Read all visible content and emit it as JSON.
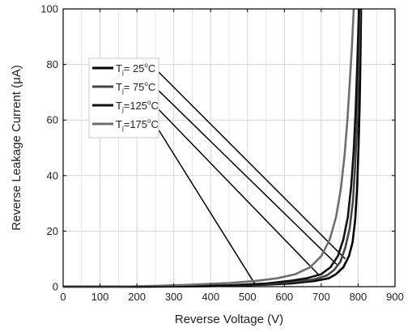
{
  "chart_data": {
    "type": "line",
    "xlabel": "Reverse Voltage (V)",
    "ylabel": "Reverse Leakage Current (μA)",
    "xlim": [
      0,
      900
    ],
    "ylim": [
      0,
      100
    ],
    "xticks": [
      0,
      100,
      200,
      300,
      400,
      500,
      600,
      700,
      800,
      900
    ],
    "yticks": [
      0,
      20,
      40,
      60,
      80,
      100
    ],
    "grid": true,
    "legend_position": "top-left",
    "series": [
      {
        "name": "Tj= 25°C",
        "label_parts": {
          "t": "T",
          "sub": "j",
          "eq": "=",
          "temp": " 25",
          "deg": "o",
          "unit": "C"
        },
        "color": "#000000",
        "pointer_target": [
          765,
          10
        ],
        "points": [
          [
            0,
            0
          ],
          [
            200,
            0
          ],
          [
            350,
            0.1
          ],
          [
            450,
            0.3
          ],
          [
            550,
            0.7
          ],
          [
            620,
            1.2
          ],
          [
            680,
            2
          ],
          [
            720,
            3
          ],
          [
            740,
            4.5
          ],
          [
            760,
            7
          ],
          [
            775,
            11
          ],
          [
            785,
            16
          ],
          [
            792,
            24
          ],
          [
            797,
            35
          ],
          [
            801,
            50
          ],
          [
            804,
            65
          ],
          [
            806,
            80
          ],
          [
            808,
            100
          ]
        ]
      },
      {
        "name": "Tj= 75°C",
        "label_parts": {
          "t": "T",
          "sub": "j",
          "eq": "=",
          "temp": " 75",
          "deg": "o",
          "unit": "C"
        },
        "color": "#444444",
        "pointer_target": [
          742,
          8
        ],
        "points": [
          [
            0,
            0
          ],
          [
            200,
            0
          ],
          [
            350,
            0.15
          ],
          [
            450,
            0.4
          ],
          [
            550,
            0.9
          ],
          [
            620,
            1.6
          ],
          [
            680,
            2.6
          ],
          [
            715,
            4
          ],
          [
            735,
            6
          ],
          [
            752,
            9
          ],
          [
            765,
            14
          ],
          [
            777,
            21
          ],
          [
            786,
            31
          ],
          [
            792,
            44
          ],
          [
            797,
            58
          ],
          [
            800,
            72
          ],
          [
            803,
            86
          ],
          [
            805,
            100
          ]
        ]
      },
      {
        "name": "Tj=125°C",
        "label_parts": {
          "t": "T",
          "sub": "j",
          "eq": "=",
          "temp": "125",
          "deg": "o",
          "unit": "C"
        },
        "color": "#111111",
        "pointer_target": [
          695,
          4
        ],
        "points": [
          [
            0,
            0
          ],
          [
            200,
            0
          ],
          [
            350,
            0.2
          ],
          [
            450,
            0.5
          ],
          [
            550,
            1.1
          ],
          [
            610,
            2
          ],
          [
            660,
            3
          ],
          [
            700,
            4.5
          ],
          [
            725,
            7
          ],
          [
            745,
            11
          ],
          [
            760,
            17
          ],
          [
            772,
            25
          ],
          [
            781,
            36
          ],
          [
            788,
            49
          ],
          [
            793,
            63
          ],
          [
            797,
            78
          ],
          [
            800,
            90
          ],
          [
            802,
            100
          ]
        ]
      },
      {
        "name": "Tj=175°C",
        "label_parts": {
          "t": "T",
          "sub": "j",
          "eq": "=",
          "temp": "175",
          "deg": "o",
          "unit": "C"
        },
        "color": "#6e6e6e",
        "pointer_target": [
          520,
          1
        ],
        "points": [
          [
            0,
            0
          ],
          [
            150,
            0
          ],
          [
            250,
            0.3
          ],
          [
            350,
            0.7
          ],
          [
            450,
            1.3
          ],
          [
            520,
            2
          ],
          [
            580,
            3
          ],
          [
            630,
            4.5
          ],
          [
            670,
            7
          ],
          [
            700,
            11
          ],
          [
            723,
            17
          ],
          [
            740,
            25
          ],
          [
            753,
            35
          ],
          [
            763,
            47
          ],
          [
            771,
            60
          ],
          [
            777,
            73
          ],
          [
            783,
            86
          ],
          [
            788,
            100
          ]
        ]
      }
    ]
  }
}
